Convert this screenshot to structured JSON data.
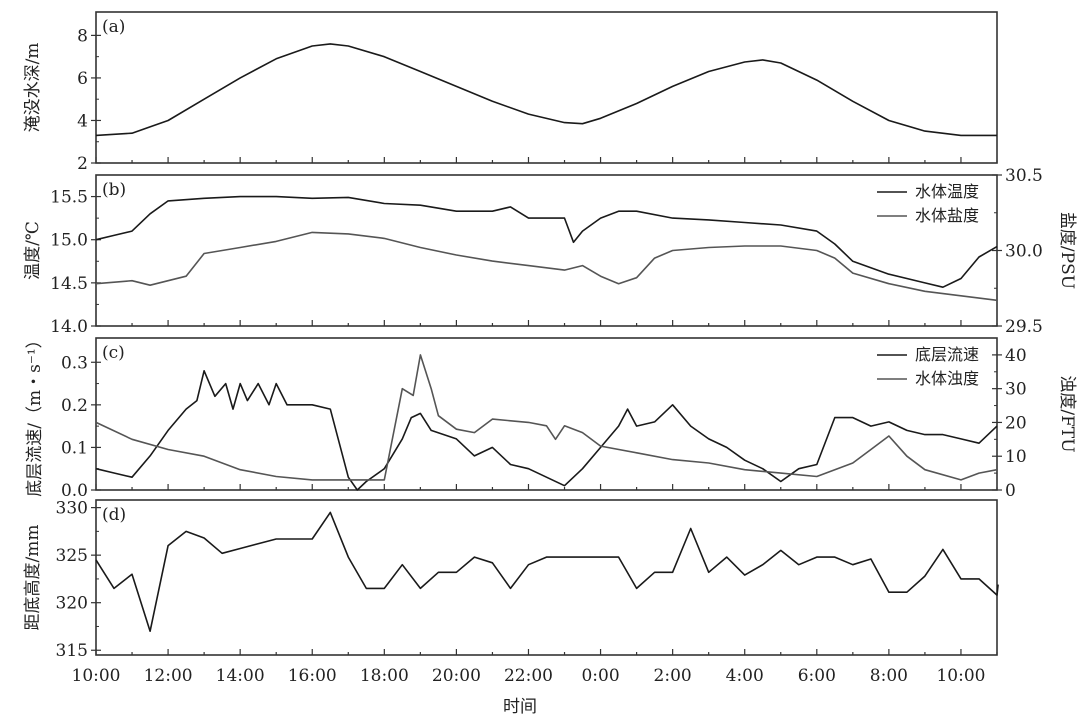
{
  "chart_data": [
    {
      "type": "line",
      "panel_label": "(a)",
      "ylabel": "淹没水深/m",
      "ylim": [
        2,
        9.1
      ],
      "yticks": [
        2,
        4,
        6,
        8
      ],
      "series": [
        {
          "name": "淹没水深",
          "color": "#1a1a1a",
          "points": [
            [
              0,
              3.3
            ],
            [
              1,
              3.4
            ],
            [
              2,
              4.0
            ],
            [
              3,
              5.0
            ],
            [
              4,
              6.0
            ],
            [
              5,
              6.9
            ],
            [
              6,
              7.5
            ],
            [
              6.5,
              7.6
            ],
            [
              7,
              7.5
            ],
            [
              8,
              7.0
            ],
            [
              9,
              6.3
            ],
            [
              10,
              5.6
            ],
            [
              11,
              4.9
            ],
            [
              12,
              4.3
            ],
            [
              13,
              3.9
            ],
            [
              13.5,
              3.85
            ],
            [
              14,
              4.1
            ],
            [
              15,
              4.8
            ],
            [
              16,
              5.6
            ],
            [
              17,
              6.3
            ],
            [
              18,
              6.75
            ],
            [
              18.5,
              6.85
            ],
            [
              19,
              6.7
            ],
            [
              20,
              5.9
            ],
            [
              21,
              4.9
            ],
            [
              22,
              4.0
            ],
            [
              23,
              3.5
            ],
            [
              24,
              3.3
            ],
            [
              25,
              3.3
            ]
          ]
        }
      ]
    },
    {
      "type": "line",
      "panel_label": "(b)",
      "ylabel": "温度/℃",
      "ylabel_right": "盐度/PSU",
      "ylim": [
        14.0,
        15.75
      ],
      "ylim_right": [
        29.5,
        30.5
      ],
      "yticks": [
        "14.0",
        "14.5",
        "15.0",
        "15.5"
      ],
      "yticks_right": [
        "29.5",
        "30.0",
        "30.5"
      ],
      "legend": "top-right",
      "series": [
        {
          "name": "水体温度",
          "axis": "left",
          "color": "#1a1a1a",
          "points": [
            [
              0,
              15.0
            ],
            [
              0.5,
              15.05
            ],
            [
              1,
              15.1
            ],
            [
              1.5,
              15.3
            ],
            [
              2,
              15.45
            ],
            [
              3,
              15.48
            ],
            [
              4,
              15.5
            ],
            [
              5,
              15.5
            ],
            [
              6,
              15.48
            ],
            [
              7,
              15.49
            ],
            [
              8,
              15.42
            ],
            [
              9,
              15.4
            ],
            [
              10,
              15.33
            ],
            [
              11,
              15.33
            ],
            [
              11.5,
              15.38
            ],
            [
              12,
              15.25
            ],
            [
              13,
              15.25
            ],
            [
              13.25,
              14.97
            ],
            [
              13.5,
              15.1
            ],
            [
              14,
              15.25
            ],
            [
              14.5,
              15.33
            ],
            [
              15,
              15.33
            ],
            [
              16,
              15.25
            ],
            [
              17,
              15.23
            ],
            [
              18,
              15.2
            ],
            [
              19,
              15.17
            ],
            [
              20,
              15.1
            ],
            [
              20.5,
              14.95
            ],
            [
              21,
              14.75
            ],
            [
              22,
              14.6
            ],
            [
              23,
              14.5
            ],
            [
              23.5,
              14.45
            ],
            [
              24,
              14.55
            ],
            [
              24.5,
              14.8
            ],
            [
              25,
              14.92
            ]
          ]
        },
        {
          "name": "水体盐度",
          "axis": "right",
          "color": "#555555",
          "points": [
            [
              0,
              29.78
            ],
            [
              1,
              29.8
            ],
            [
              1.5,
              29.77
            ],
            [
              2,
              29.8
            ],
            [
              2.5,
              29.83
            ],
            [
              3,
              29.98
            ],
            [
              4,
              30.02
            ],
            [
              5,
              30.06
            ],
            [
              6,
              30.12
            ],
            [
              7,
              30.11
            ],
            [
              8,
              30.08
            ],
            [
              9,
              30.02
            ],
            [
              10,
              29.97
            ],
            [
              11,
              29.93
            ],
            [
              12,
              29.9
            ],
            [
              13,
              29.87
            ],
            [
              13.5,
              29.9
            ],
            [
              14,
              29.83
            ],
            [
              14.5,
              29.78
            ],
            [
              15,
              29.82
            ],
            [
              15.5,
              29.95
            ],
            [
              16,
              30.0
            ],
            [
              17,
              30.02
            ],
            [
              18,
              30.03
            ],
            [
              19,
              30.03
            ],
            [
              20,
              30.0
            ],
            [
              20.5,
              29.95
            ],
            [
              21,
              29.85
            ],
            [
              22,
              29.78
            ],
            [
              23,
              29.73
            ],
            [
              24,
              29.7
            ],
            [
              25,
              29.67
            ]
          ]
        }
      ]
    },
    {
      "type": "line",
      "panel_label": "(c)",
      "ylabel": "底层流速/（m・s⁻¹）",
      "ylabel_right": "浊度/FTU",
      "ylim": [
        0,
        0.357
      ],
      "ylim_right": [
        0,
        45
      ],
      "yticks": [
        "0.0",
        "0.1",
        "0.2",
        "0.3"
      ],
      "yticks_right": [
        "0",
        "10",
        "20",
        "30",
        "40"
      ],
      "legend": "top-right",
      "series": [
        {
          "name": "底层流速",
          "axis": "left",
          "color": "#1a1a1a",
          "points": [
            [
              0,
              0.05
            ],
            [
              0.5,
              0.04
            ],
            [
              1,
              0.03
            ],
            [
              1.5,
              0.08
            ],
            [
              2,
              0.14
            ],
            [
              2.5,
              0.19
            ],
            [
              2.8,
              0.21
            ],
            [
              3,
              0.28
            ],
            [
              3.3,
              0.22
            ],
            [
              3.6,
              0.25
            ],
            [
              3.8,
              0.19
            ],
            [
              4,
              0.25
            ],
            [
              4.2,
              0.21
            ],
            [
              4.5,
              0.25
            ],
            [
              4.8,
              0.2
            ],
            [
              5,
              0.25
            ],
            [
              5.3,
              0.2
            ],
            [
              6,
              0.2
            ],
            [
              6.5,
              0.19
            ],
            [
              7,
              0.03
            ],
            [
              7.25,
              0.0
            ],
            [
              7.5,
              0.02
            ],
            [
              8,
              0.05
            ],
            [
              8.5,
              0.12
            ],
            [
              8.75,
              0.17
            ],
            [
              9,
              0.18
            ],
            [
              9.3,
              0.14
            ],
            [
              10,
              0.12
            ],
            [
              10.5,
              0.08
            ],
            [
              11,
              0.1
            ],
            [
              11.5,
              0.06
            ],
            [
              12,
              0.05
            ],
            [
              12.5,
              0.03
            ],
            [
              13,
              0.01
            ],
            [
              13.5,
              0.05
            ],
            [
              14,
              0.1
            ],
            [
              14.5,
              0.15
            ],
            [
              14.75,
              0.19
            ],
            [
              15,
              0.15
            ],
            [
              15.5,
              0.16
            ],
            [
              16,
              0.2
            ],
            [
              16.5,
              0.15
            ],
            [
              17,
              0.12
            ],
            [
              17.5,
              0.1
            ],
            [
              18,
              0.07
            ],
            [
              18.5,
              0.05
            ],
            [
              19,
              0.02
            ],
            [
              19.5,
              0.05
            ],
            [
              20,
              0.06
            ],
            [
              20.5,
              0.17
            ],
            [
              21,
              0.17
            ],
            [
              21.5,
              0.15
            ],
            [
              22,
              0.16
            ],
            [
              22.5,
              0.14
            ],
            [
              23,
              0.13
            ],
            [
              23.5,
              0.13
            ],
            [
              24,
              0.12
            ],
            [
              24.5,
              0.11
            ],
            [
              25,
              0.15
            ]
          ]
        },
        {
          "name": "水体浊度",
          "axis": "right",
          "color": "#555555",
          "points": [
            [
              0,
              20
            ],
            [
              1,
              15
            ],
            [
              2,
              12
            ],
            [
              3,
              10
            ],
            [
              4,
              6
            ],
            [
              5,
              4
            ],
            [
              6,
              3
            ],
            [
              7,
              3
            ],
            [
              8,
              3
            ],
            [
              8.5,
              30
            ],
            [
              8.8,
              28
            ],
            [
              9,
              40
            ],
            [
              9.3,
              30
            ],
            [
              9.5,
              22
            ],
            [
              10,
              18
            ],
            [
              10.5,
              17
            ],
            [
              11,
              21
            ],
            [
              12,
              20
            ],
            [
              12.5,
              19
            ],
            [
              12.75,
              15
            ],
            [
              13,
              19
            ],
            [
              13.5,
              17
            ],
            [
              14,
              13
            ],
            [
              15,
              11
            ],
            [
              16,
              9
            ],
            [
              17,
              8
            ],
            [
              18,
              6
            ],
            [
              19,
              5
            ],
            [
              20,
              4
            ],
            [
              21,
              8
            ],
            [
              21.5,
              12
            ],
            [
              22,
              16
            ],
            [
              22.5,
              10
            ],
            [
              23,
              6
            ],
            [
              24,
              3
            ],
            [
              24.5,
              5
            ],
            [
              25,
              6
            ]
          ]
        }
      ]
    },
    {
      "type": "line",
      "panel_label": "(d)",
      "ylabel": "距底高度/mm",
      "ylim": [
        314.5,
        330.8
      ],
      "yticks": [
        315,
        320,
        325,
        330
      ],
      "series": [
        {
          "name": "距底高度",
          "color": "#1a1a1a",
          "points": [
            [
              0,
              324.5
            ],
            [
              0.5,
              321.5
            ],
            [
              1,
              323
            ],
            [
              1.5,
              317
            ],
            [
              2,
              326
            ],
            [
              2.5,
              327.5
            ],
            [
              3,
              326.8
            ],
            [
              3.5,
              325.2
            ],
            [
              4,
              325.7
            ],
            [
              5,
              326.7
            ],
            [
              6,
              326.7
            ],
            [
              6.5,
              329.5
            ],
            [
              7,
              324.8
            ],
            [
              7.5,
              321.5
            ],
            [
              8,
              321.5
            ],
            [
              8.5,
              324
            ],
            [
              9,
              321.5
            ],
            [
              9.5,
              323.2
            ],
            [
              10,
              323.2
            ],
            [
              10.5,
              324.8
            ],
            [
              11,
              324.2
            ],
            [
              11.5,
              321.5
            ],
            [
              12,
              324
            ],
            [
              12.5,
              324.8
            ],
            [
              14.5,
              324.8
            ],
            [
              15,
              321.5
            ],
            [
              15.5,
              323.2
            ],
            [
              16,
              323.2
            ],
            [
              16.5,
              327.8
            ],
            [
              17,
              323.2
            ],
            [
              17.5,
              324.8
            ],
            [
              18,
              322.9
            ],
            [
              18.5,
              324
            ],
            [
              19,
              325.5
            ],
            [
              19.5,
              324
            ],
            [
              20,
              324.8
            ],
            [
              20.5,
              324.8
            ],
            [
              21,
              324
            ],
            [
              21.5,
              324.6
            ],
            [
              22,
              321.1
            ],
            [
              22.5,
              321.1
            ],
            [
              23,
              322.8
            ],
            [
              23.5,
              325.6
            ],
            [
              24,
              322.5
            ],
            [
              24.5,
              322.5
            ],
            [
              25,
              320.8
            ],
            [
              25.03,
              321.9
            ]
          ]
        }
      ]
    }
  ],
  "x_axis": {
    "xlabel": "时间",
    "xlim": [
      0,
      25
    ],
    "tick_labels": [
      "10:00",
      "12:00",
      "14:00",
      "16:00",
      "18:00",
      "20:00",
      "22:00",
      "0:00",
      "2:00",
      "4:00",
      "6:00",
      "8:00",
      "10:00"
    ]
  }
}
